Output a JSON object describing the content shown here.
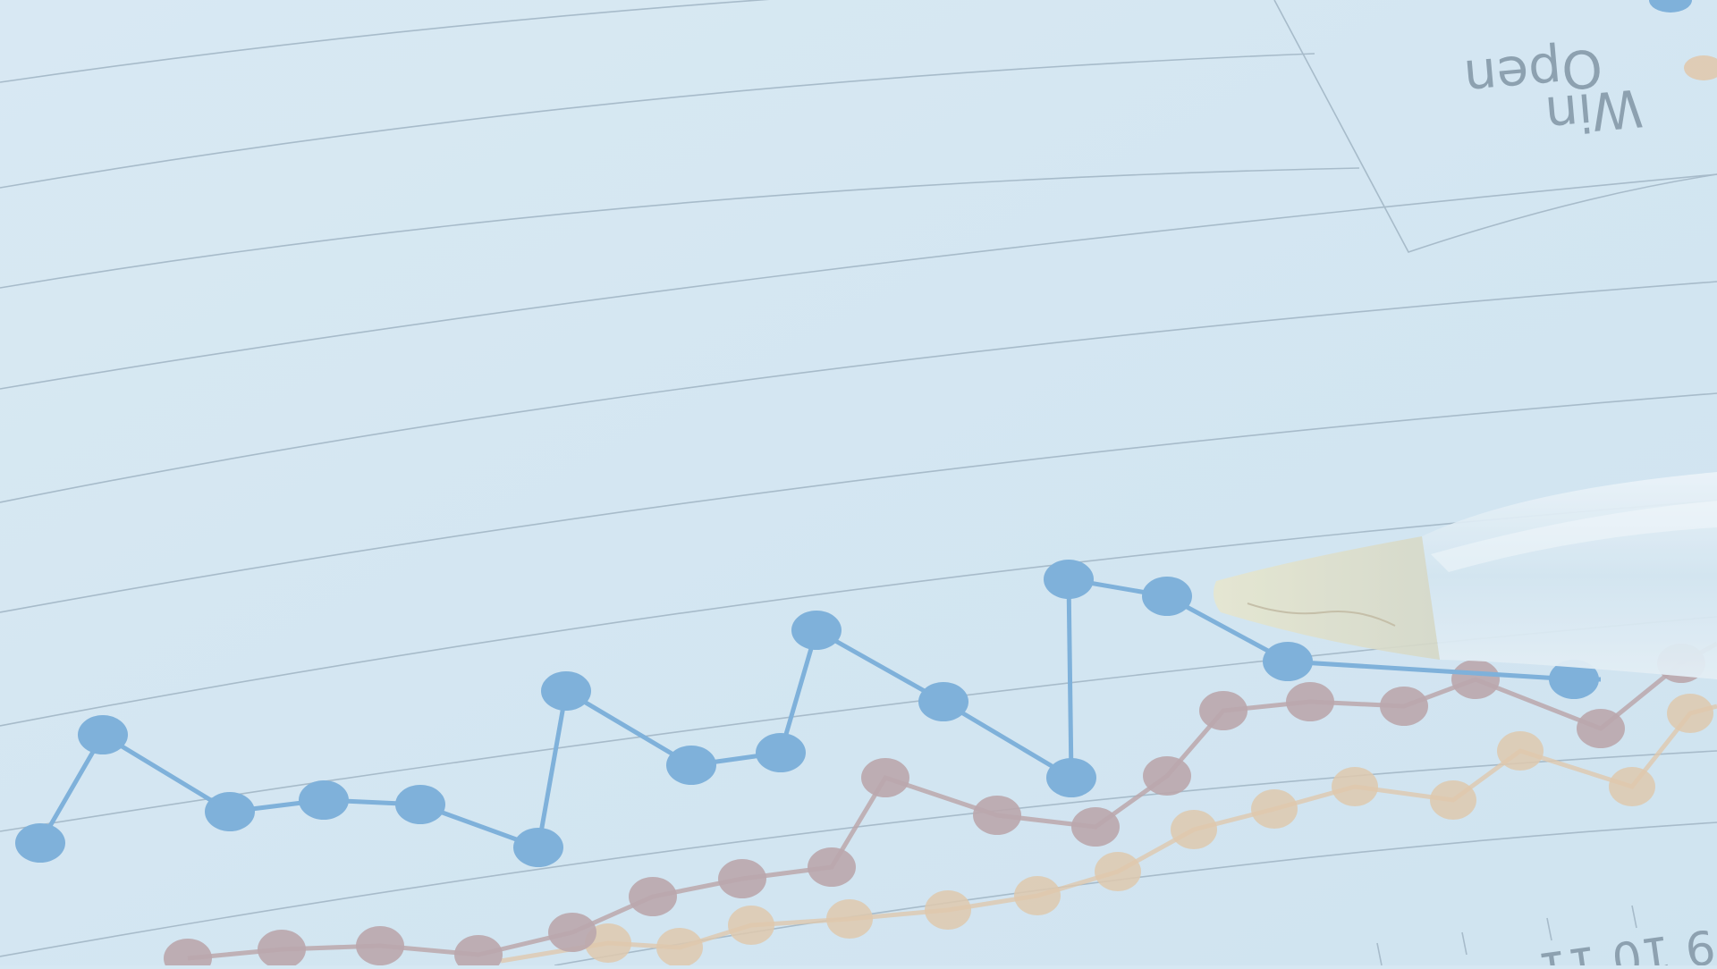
{
  "photo": {
    "legend": {
      "open_label": "Open",
      "win_label": "Win",
      "open_color": "#5b9bd5",
      "win_color": "#e8b98a"
    },
    "axis_numbers_text": "9 10 11",
    "series_colors": {
      "blue": "#6ea6d6",
      "mauve": "#b79a9e",
      "gold": "#e3c3a0"
    },
    "paper_color": "#d6e8f3",
    "tint_color": "#cfe3f1"
  }
}
